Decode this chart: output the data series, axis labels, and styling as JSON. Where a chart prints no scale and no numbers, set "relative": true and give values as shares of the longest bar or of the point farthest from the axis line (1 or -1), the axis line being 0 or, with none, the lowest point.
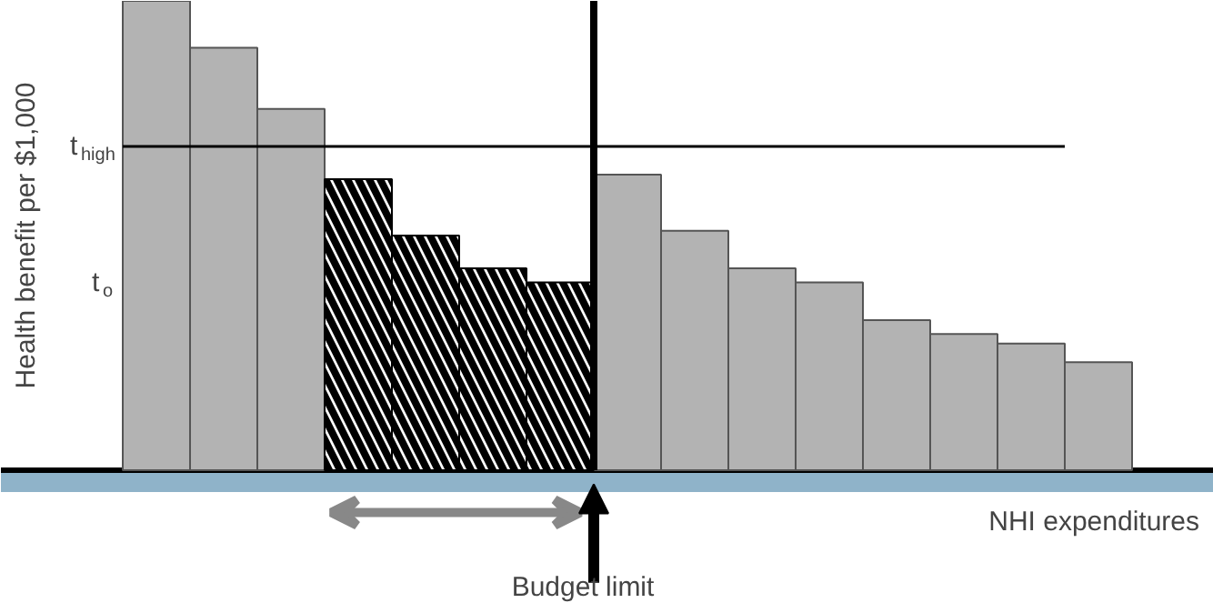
{
  "chart_data": {
    "type": "bar",
    "relative": true,
    "xlabel": "NHI expenditures",
    "ylabel": "Health benefit per $1,000",
    "categories": [
      null,
      null,
      null,
      null,
      null,
      null,
      null,
      null,
      null,
      null,
      null,
      null,
      null,
      null,
      null
    ],
    "values": [
      1,
      0.9,
      0.77,
      0.62,
      0.5,
      0.43,
      0.4,
      0.63,
      0.51,
      0.43,
      0.4,
      0.32,
      0.29,
      0.27,
      0.23
    ],
    "colors": [
      "#b3b3b3",
      "#b3b3b3",
      "#b3b3b3",
      "#000000",
      "#000000",
      "#000000",
      "#000000",
      "#b3b3b3",
      "#b3b3b3",
      "#b3b3b3",
      "#b3b3b3",
      "#b3b3b3",
      "#b3b3b3",
      "#b3b3b3",
      "#b3b3b3"
    ],
    "ref_lines": [
      {
        "axis": "y",
        "value": 0.69,
        "label": "t$_{high}$",
        "color": "#000000"
      }
    ],
    "annotations": [
      "t$_{o}$",
      "Budget limit"
    ]
  }
}
